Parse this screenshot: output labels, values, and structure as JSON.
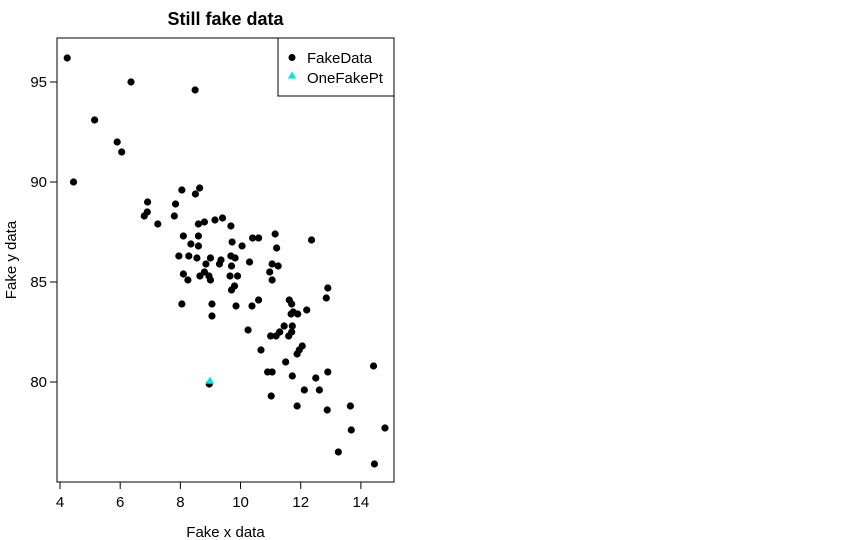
{
  "chart_data": {
    "type": "scatter",
    "title": "Still fake data",
    "xlabel": "Fake x data",
    "ylabel": "Fake y data",
    "xlim": [
      3.9,
      15.1
    ],
    "ylim": [
      75,
      97.2
    ],
    "x_ticks": [
      4,
      6,
      8,
      10,
      12,
      14
    ],
    "y_ticks": [
      80,
      85,
      90,
      95
    ],
    "grid": false,
    "legend_position": "top-right",
    "series": [
      {
        "name": "FakeData",
        "marker": "circle",
        "color": "#000000",
        "points": [
          [
            4.24,
            96.2
          ],
          [
            6.36,
            95.0
          ],
          [
            8.49,
            94.6
          ],
          [
            5.15,
            93.1
          ],
          [
            5.9,
            92.0
          ],
          [
            6.05,
            91.5
          ],
          [
            4.45,
            90.0
          ],
          [
            8.05,
            89.6
          ],
          [
            8.64,
            89.7
          ],
          [
            8.5,
            89.4
          ],
          [
            6.91,
            89.0
          ],
          [
            6.8,
            88.3
          ],
          [
            6.9,
            88.5
          ],
          [
            7.84,
            88.9
          ],
          [
            7.8,
            88.3
          ],
          [
            7.25,
            87.9
          ],
          [
            8.6,
            87.9
          ],
          [
            8.8,
            88.0
          ],
          [
            9.15,
            88.1
          ],
          [
            9.4,
            88.2
          ],
          [
            9.68,
            87.8
          ],
          [
            8.6,
            87.3
          ],
          [
            8.6,
            86.8
          ],
          [
            8.35,
            86.9
          ],
          [
            9.72,
            87.0
          ],
          [
            10.4,
            87.2
          ],
          [
            10.6,
            87.2
          ],
          [
            11.15,
            87.4
          ],
          [
            12.36,
            87.1
          ],
          [
            10.05,
            86.8
          ],
          [
            11.2,
            86.7
          ],
          [
            7.95,
            86.3
          ],
          [
            8.28,
            86.3
          ],
          [
            8.55,
            86.2
          ],
          [
            9.0,
            86.2
          ],
          [
            9.35,
            86.1
          ],
          [
            9.68,
            86.3
          ],
          [
            9.82,
            86.2
          ],
          [
            10.3,
            86.0
          ],
          [
            8.1,
            87.3
          ],
          [
            8.85,
            85.9
          ],
          [
            9.7,
            85.8
          ],
          [
            9.3,
            85.9
          ],
          [
            11.05,
            85.9
          ],
          [
            11.25,
            85.8
          ],
          [
            8.1,
            85.4
          ],
          [
            8.25,
            85.1
          ],
          [
            8.65,
            85.3
          ],
          [
            8.95,
            85.3
          ],
          [
            9.65,
            85.3
          ],
          [
            9.9,
            85.3
          ],
          [
            10.97,
            85.5
          ],
          [
            11.05,
            85.1
          ],
          [
            9.0,
            85.1
          ],
          [
            8.8,
            85.5
          ],
          [
            9.8,
            84.8
          ],
          [
            9.7,
            84.6
          ],
          [
            12.9,
            84.7
          ],
          [
            10.6,
            84.1
          ],
          [
            11.62,
            84.1
          ],
          [
            11.7,
            83.9
          ],
          [
            12.85,
            84.2
          ],
          [
            8.05,
            83.9
          ],
          [
            9.05,
            83.9
          ],
          [
            9.85,
            83.8
          ],
          [
            10.38,
            83.8
          ],
          [
            11.75,
            83.5
          ],
          [
            11.9,
            83.4
          ],
          [
            12.2,
            83.6
          ],
          [
            11.68,
            83.4
          ],
          [
            9.05,
            83.3
          ],
          [
            11.45,
            82.8
          ],
          [
            11.3,
            82.5
          ],
          [
            11.72,
            82.8
          ],
          [
            10.25,
            82.6
          ],
          [
            11.0,
            82.3
          ],
          [
            11.18,
            82.3
          ],
          [
            11.3,
            82.5
          ],
          [
            11.7,
            82.5
          ],
          [
            11.6,
            82.3
          ],
          [
            12.05,
            81.8
          ],
          [
            11.95,
            81.6
          ],
          [
            11.88,
            81.4
          ],
          [
            10.68,
            81.6
          ],
          [
            11.5,
            81.0
          ],
          [
            10.9,
            80.5
          ],
          [
            11.05,
            80.5
          ],
          [
            11.72,
            80.3
          ],
          [
            12.5,
            80.2
          ],
          [
            12.9,
            80.5
          ],
          [
            14.42,
            80.8
          ],
          [
            8.96,
            79.9
          ],
          [
            12.12,
            79.6
          ],
          [
            11.02,
            79.3
          ],
          [
            12.62,
            79.6
          ],
          [
            11.88,
            78.8
          ],
          [
            12.88,
            78.6
          ],
          [
            13.65,
            78.8
          ],
          [
            13.68,
            77.6
          ],
          [
            14.8,
            77.7
          ],
          [
            13.25,
            76.5
          ],
          [
            14.45,
            75.9
          ]
        ]
      },
      {
        "name": "OneFakePt",
        "marker": "triangle",
        "color": "#00e5ee",
        "points": [
          [
            8.98,
            80.05
          ]
        ]
      }
    ]
  }
}
